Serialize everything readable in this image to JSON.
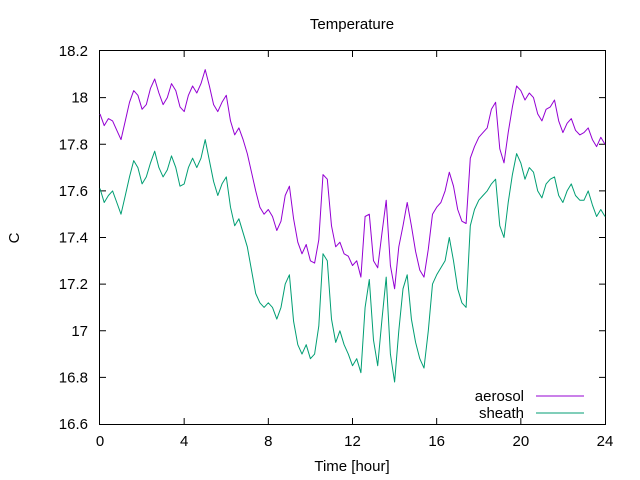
{
  "chart_data": {
    "type": "line",
    "title": "Temperature",
    "xlabel": "Time [hour]",
    "ylabel": "C",
    "xlim": [
      0,
      24
    ],
    "ylim": [
      16.6,
      18.2
    ],
    "xticks": [
      "0",
      "4",
      "8",
      "12",
      "16",
      "20",
      "24"
    ],
    "yticks": [
      "16.6",
      "16.8",
      "17",
      "17.2",
      "17.4",
      "17.6",
      "17.8",
      "18",
      "18.2"
    ],
    "grid": false,
    "legend_position": "bottom-right",
    "series": [
      {
        "name": "aerosol",
        "color": "#9400d3",
        "x": [
          0,
          0.2,
          0.4,
          0.6,
          0.8,
          1.0,
          1.2,
          1.4,
          1.6,
          1.8,
          2.0,
          2.2,
          2.4,
          2.6,
          2.8,
          3.0,
          3.2,
          3.4,
          3.6,
          3.8,
          4.0,
          4.2,
          4.4,
          4.6,
          4.8,
          5.0,
          5.2,
          5.4,
          5.6,
          5.8,
          6.0,
          6.2,
          6.4,
          6.6,
          6.8,
          7.0,
          7.2,
          7.4,
          7.6,
          7.8,
          8.0,
          8.2,
          8.4,
          8.6,
          8.8,
          9.0,
          9.2,
          9.4,
          9.6,
          9.8,
          10.0,
          10.2,
          10.4,
          10.6,
          10.8,
          11.0,
          11.2,
          11.4,
          11.6,
          11.8,
          12.0,
          12.2,
          12.4,
          12.6,
          12.8,
          13.0,
          13.2,
          13.4,
          13.6,
          13.8,
          14.0,
          14.2,
          14.4,
          14.6,
          14.8,
          15.0,
          15.2,
          15.4,
          15.6,
          15.8,
          16.0,
          16.2,
          16.4,
          16.6,
          16.8,
          17.0,
          17.2,
          17.4,
          17.6,
          17.8,
          18.0,
          18.2,
          18.4,
          18.6,
          18.8,
          19.0,
          19.2,
          19.4,
          19.6,
          19.8,
          20.0,
          20.2,
          20.4,
          20.6,
          20.8,
          21.0,
          21.2,
          21.4,
          21.6,
          21.8,
          22.0,
          22.2,
          22.4,
          22.6,
          22.8,
          23.0,
          23.2,
          23.4,
          23.6,
          23.8,
          24.0
        ],
        "y": [
          17.93,
          17.88,
          17.91,
          17.9,
          17.86,
          17.82,
          17.9,
          17.98,
          18.03,
          18.01,
          17.95,
          17.97,
          18.04,
          18.08,
          18.02,
          17.97,
          18.0,
          18.06,
          18.03,
          17.96,
          17.94,
          18.01,
          18.05,
          18.02,
          18.06,
          18.12,
          18.05,
          17.97,
          17.94,
          17.98,
          18.01,
          17.9,
          17.84,
          17.87,
          17.82,
          17.76,
          17.68,
          17.6,
          17.53,
          17.5,
          17.52,
          17.49,
          17.43,
          17.47,
          17.58,
          17.62,
          17.48,
          17.38,
          17.33,
          17.37,
          17.3,
          17.29,
          17.39,
          17.67,
          17.65,
          17.45,
          17.36,
          17.38,
          17.33,
          17.32,
          17.28,
          17.3,
          17.23,
          17.49,
          17.5,
          17.3,
          17.27,
          17.42,
          17.56,
          17.28,
          17.18,
          17.36,
          17.45,
          17.55,
          17.45,
          17.34,
          17.26,
          17.23,
          17.35,
          17.5,
          17.53,
          17.55,
          17.6,
          17.68,
          17.62,
          17.52,
          17.47,
          17.46,
          17.74,
          17.79,
          17.83,
          17.85,
          17.87,
          17.95,
          17.98,
          17.78,
          17.72,
          17.85,
          17.96,
          18.05,
          18.03,
          17.99,
          18.02,
          18.0,
          17.93,
          17.9,
          17.95,
          17.96,
          17.99,
          17.9,
          17.85,
          17.89,
          17.91,
          17.86,
          17.84,
          17.85,
          17.87,
          17.82,
          17.79,
          17.83,
          17.8
        ]
      },
      {
        "name": "sheath",
        "color": "#009e73",
        "x": [
          0,
          0.2,
          0.4,
          0.6,
          0.8,
          1.0,
          1.2,
          1.4,
          1.6,
          1.8,
          2.0,
          2.2,
          2.4,
          2.6,
          2.8,
          3.0,
          3.2,
          3.4,
          3.6,
          3.8,
          4.0,
          4.2,
          4.4,
          4.6,
          4.8,
          5.0,
          5.2,
          5.4,
          5.6,
          5.8,
          6.0,
          6.2,
          6.4,
          6.6,
          6.8,
          7.0,
          7.2,
          7.4,
          7.6,
          7.8,
          8.0,
          8.2,
          8.4,
          8.6,
          8.8,
          9.0,
          9.2,
          9.4,
          9.6,
          9.8,
          10.0,
          10.2,
          10.4,
          10.6,
          10.8,
          11.0,
          11.2,
          11.4,
          11.6,
          11.8,
          12.0,
          12.2,
          12.4,
          12.6,
          12.8,
          13.0,
          13.2,
          13.4,
          13.6,
          13.8,
          14.0,
          14.2,
          14.4,
          14.6,
          14.8,
          15.0,
          15.2,
          15.4,
          15.6,
          15.8,
          16.0,
          16.2,
          16.4,
          16.6,
          16.8,
          17.0,
          17.2,
          17.4,
          17.6,
          17.8,
          18.0,
          18.2,
          18.4,
          18.6,
          18.8,
          19.0,
          19.2,
          19.4,
          19.6,
          19.8,
          20.0,
          20.2,
          20.4,
          20.6,
          20.8,
          21.0,
          21.2,
          21.4,
          21.6,
          21.8,
          22.0,
          22.2,
          22.4,
          22.6,
          22.8,
          23.0,
          23.2,
          23.4,
          23.6,
          23.8,
          24.0
        ],
        "y": [
          17.61,
          17.55,
          17.58,
          17.6,
          17.55,
          17.5,
          17.58,
          17.66,
          17.73,
          17.7,
          17.63,
          17.66,
          17.72,
          17.77,
          17.7,
          17.66,
          17.69,
          17.75,
          17.7,
          17.62,
          17.63,
          17.7,
          17.74,
          17.7,
          17.74,
          17.82,
          17.73,
          17.64,
          17.58,
          17.63,
          17.66,
          17.53,
          17.45,
          17.48,
          17.42,
          17.36,
          17.26,
          17.16,
          17.12,
          17.1,
          17.12,
          17.1,
          17.05,
          17.1,
          17.2,
          17.24,
          17.04,
          16.94,
          16.9,
          16.94,
          16.88,
          16.9,
          17.02,
          17.33,
          17.3,
          17.05,
          16.95,
          17.0,
          16.94,
          16.9,
          16.85,
          16.88,
          16.82,
          17.1,
          17.22,
          16.96,
          16.85,
          17.05,
          17.23,
          16.9,
          16.78,
          17.0,
          17.18,
          17.24,
          17.05,
          16.95,
          16.88,
          16.84,
          17.0,
          17.2,
          17.24,
          17.27,
          17.3,
          17.4,
          17.3,
          17.18,
          17.12,
          17.1,
          17.45,
          17.52,
          17.56,
          17.58,
          17.6,
          17.63,
          17.65,
          17.45,
          17.4,
          17.55,
          17.67,
          17.76,
          17.72,
          17.65,
          17.7,
          17.68,
          17.6,
          17.57,
          17.63,
          17.65,
          17.66,
          17.58,
          17.55,
          17.6,
          17.63,
          17.58,
          17.56,
          17.56,
          17.6,
          17.54,
          17.49,
          17.52,
          17.49
        ]
      }
    ]
  }
}
